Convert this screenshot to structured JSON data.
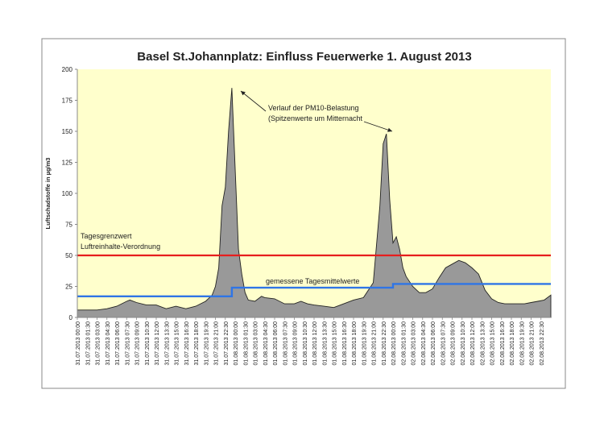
{
  "chart_data": {
    "type": "area",
    "title": "Basel St.Johannplatz: Einfluss Feuerwerke 1. August 2013",
    "xlabel": "",
    "ylabel": "Luftschadstoffe in µg/m3",
    "ylim": [
      0,
      200
    ],
    "yticks": [
      0,
      25,
      50,
      75,
      100,
      125,
      150,
      175,
      200
    ],
    "grid": false,
    "legend": "none",
    "x_tick_labels": [
      "31.07.2013 00:00",
      "31.07.2013 01:30",
      "31.07.2013 03:00",
      "31.07.2013 04:30",
      "31.07.2013 06:00",
      "31.07.2013 07:30",
      "31.07.2013 09:00",
      "31.07.2013 10:30",
      "31.07.2013 12:00",
      "31.07.2013 13:30",
      "31.07.2013 15:00",
      "31.07.2013 16:30",
      "31.07.2013 18:00",
      "31.07.2013 19:30",
      "31.07.2013 21:00",
      "31.07.2013 22:30",
      "01.08.2013 00:00",
      "01.08.2013 01:30",
      "01.08.2013 03:00",
      "01.08.2013 04:30",
      "01.08.2013 06:00",
      "01.08.2013 07:30",
      "01.08.2013 09:00",
      "01.08.2013 10:30",
      "01.08.2013 12:00",
      "01.08.2013 13:30",
      "01.08.2013 15:00",
      "01.08.2013 16:30",
      "01.08.2013 18:00",
      "01.08.2013 19:30",
      "01.08.2013 21:00",
      "01.08.2013 22:30",
      "02.08.2013 00:00",
      "02.08.2013 01:30",
      "02.08.2013 03:00",
      "02.08.2013 04:30",
      "02.08.2013 06:00",
      "02.08.2013 07:30",
      "02.08.2013 09:00",
      "02.08.2013 10:30",
      "02.08.2013 12:00",
      "02.08.2013 13:30",
      "02.08.2013 15:00",
      "02.08.2013 16:30",
      "02.08.2013 18:00",
      "02.08.2013 19:30",
      "02.08.2013 21:00",
      "02.08.2013 22:30"
    ],
    "series": [
      {
        "name": "PM10",
        "type": "area",
        "color": "#999999",
        "x_hours": [
          0,
          1.5,
          3,
          4.5,
          6,
          7.5,
          8,
          9,
          10.5,
          12,
          13.5,
          15,
          16.5,
          18,
          19.5,
          20.5,
          21,
          21.5,
          22,
          22.5,
          23,
          23.5,
          24,
          24.5,
          25,
          25.5,
          26,
          27,
          28,
          28.5,
          30,
          31.5,
          33,
          34,
          35,
          36,
          37.5,
          39,
          40.5,
          42,
          43.5,
          45,
          46,
          46.5,
          47,
          47.5,
          48,
          48.5,
          49,
          49.5,
          50,
          51,
          52,
          53,
          54,
          55,
          56,
          57,
          58,
          59,
          60,
          61,
          62,
          63,
          64,
          65,
          66,
          67,
          68,
          69,
          70,
          71,
          72
        ],
        "values": [
          6,
          6,
          6,
          7,
          9,
          13,
          14,
          12,
          10,
          10,
          7,
          9,
          7,
          9,
          13,
          18,
          25,
          40,
          90,
          105,
          150,
          185,
          120,
          55,
          35,
          20,
          14,
          13,
          17,
          16,
          15,
          11,
          11,
          13,
          11,
          10,
          9,
          8,
          11,
          14,
          16,
          28,
          90,
          140,
          148,
          95,
          60,
          65,
          55,
          40,
          33,
          25,
          20,
          20,
          23,
          32,
          40,
          43,
          46,
          44,
          40,
          35,
          22,
          15,
          12,
          11,
          11,
          11,
          11,
          12,
          13,
          14,
          18
        ]
      },
      {
        "name": "gemessene Tagesmittelwerte",
        "type": "step",
        "color": "#2f75e6",
        "steps": [
          {
            "from": 0,
            "to": 23.5,
            "value": 17
          },
          {
            "from": 23.5,
            "to": 48,
            "value": 24
          },
          {
            "from": 48,
            "to": 72,
            "value": 27
          }
        ]
      },
      {
        "name": "Tagesgrenzwert Luftreinhalte-Verordnung",
        "type": "hline",
        "color": "#e61e1e",
        "value": 50
      }
    ],
    "annotations": [
      {
        "text_lines": [
          "Verlauf der PM10-Belastung",
          "(Spitzenwerte um Mitternacht"
        ],
        "arrows_to_hours": [
          23.5,
          47
        ]
      },
      {
        "text_lines": [
          "Tagesgrenzwert",
          "Luftreinhalte-Verordnung"
        ]
      },
      {
        "text_lines": [
          "gemessene Tagesmittelwerte"
        ]
      }
    ],
    "colors": {
      "plot_background": "#ffffcc",
      "area_fill": "#999999",
      "area_stroke": "#222222",
      "limit_line": "#e61e1e",
      "mean_line": "#2f75e6"
    }
  }
}
